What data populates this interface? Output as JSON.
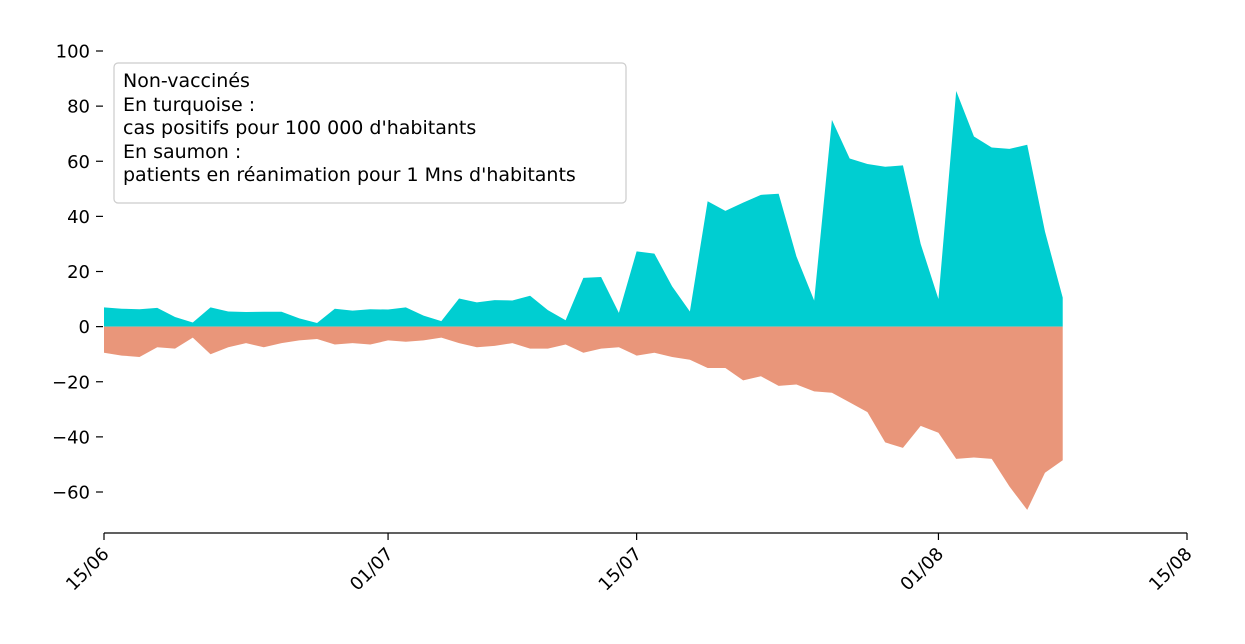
{
  "chart_data": {
    "type": "area",
    "title": "",
    "xlabel": "",
    "ylabel": "",
    "x_start": "15/06",
    "x_end": "11/08",
    "xlim": [
      "15/06",
      "15/08"
    ],
    "ylim": [
      -75,
      102
    ],
    "x_ticks": [
      "15/06",
      "01/07",
      "15/07",
      "01/08",
      "15/08"
    ],
    "y_ticks": [
      100,
      80,
      60,
      40,
      20,
      0,
      -20,
      -40,
      -60
    ],
    "y_tick_labels": [
      "100",
      "80",
      "60",
      "40",
      "20",
      "0",
      "−20",
      "−40",
      "−60"
    ],
    "grid": false,
    "legend_placement": "top-left",
    "legend_lines": [
      "Non-vaccinés",
      "En turquoise :",
      "cas positifs pour 100 000 d'habitants",
      "En saumon :",
      "patients en réanimation pour 1 Mns d'habitants"
    ],
    "series": [
      {
        "color": "#00CED1",
        "values": [
          7,
          6.5,
          6.3,
          6.8,
          3.5,
          1.5,
          7,
          5.5,
          5.3,
          5.4,
          5.4,
          3,
          1.3,
          6.5,
          5.8,
          6.3,
          6.2,
          7,
          4,
          2,
          10.2,
          8.8,
          9.6,
          9.5,
          11.2,
          6,
          2.3,
          17.7,
          18,
          5,
          27.3,
          26.5,
          14.6,
          5.5,
          45.5,
          42,
          45,
          47.8,
          48.2,
          25.5,
          9.5,
          75,
          61,
          59,
          58,
          58.5,
          30,
          10,
          85.5,
          69,
          65,
          64.5,
          66,
          34.5,
          10.5
        ]
      },
      {
        "color": "#E9967A",
        "values": [
          -9.5,
          -10.5,
          -11,
          -7.5,
          -8,
          -4,
          -10,
          -7.5,
          -6,
          -7.5,
          -6,
          -5,
          -4.5,
          -6.5,
          -6,
          -6.5,
          -5,
          -5.5,
          -5,
          -4,
          -6,
          -7.5,
          -7,
          -6,
          -8,
          -8,
          -6.5,
          -9.5,
          -8,
          -7.5,
          -10.5,
          -9.5,
          -11,
          -12,
          -15,
          -15,
          -19.5,
          -18,
          -21.5,
          -21,
          -23.5,
          -24,
          -27.5,
          -31,
          -42,
          -44,
          -36,
          -38.5,
          -48,
          -47.5,
          -48,
          -58,
          -66.5,
          -53,
          -48.5
        ]
      }
    ]
  }
}
